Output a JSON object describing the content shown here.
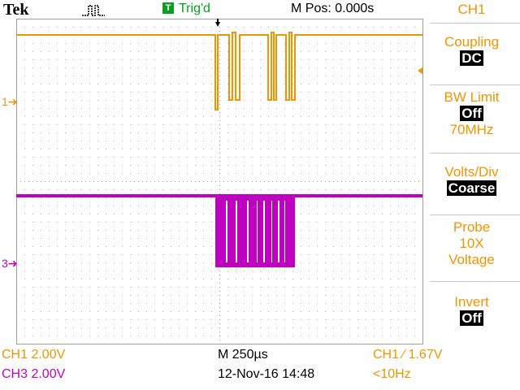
{
  "header": {
    "brand": "Tek",
    "acquisition_icon": "pulse-icon",
    "trigger_badge": "T",
    "trigger_status": "Trig'd",
    "horizontal_position": "M Pos: 0.000s"
  },
  "channel_markers": {
    "ch1": "1",
    "ch3": "3"
  },
  "side_menu": {
    "title": "CH1",
    "coupling_label": "Coupling",
    "coupling_value": "DC",
    "bw_limit_label": "BW Limit",
    "bw_limit_value": "Off",
    "bw_limit_freq": "70MHz",
    "volts_div_label": "Volts/Div",
    "volts_div_value": "Coarse",
    "probe_label": "Probe",
    "probe_attenuation": "10X",
    "probe_type": "Voltage",
    "invert_label": "Invert",
    "invert_value": "Off"
  },
  "status_bar": {
    "ch1_scale": "CH1  2.00V",
    "ch3_scale": "CH3  2.00V",
    "timebase": "M 250µs",
    "date_time": "12-Nov-16 14:48",
    "trigger_setting": "CH1 ∕ 1.67V",
    "trigger_freq": "<10Hz"
  },
  "colors": {
    "ch1": "#f29400",
    "ch3": "#c000c0",
    "grid": "#a0a0a0",
    "trigger": "#08a020"
  }
}
